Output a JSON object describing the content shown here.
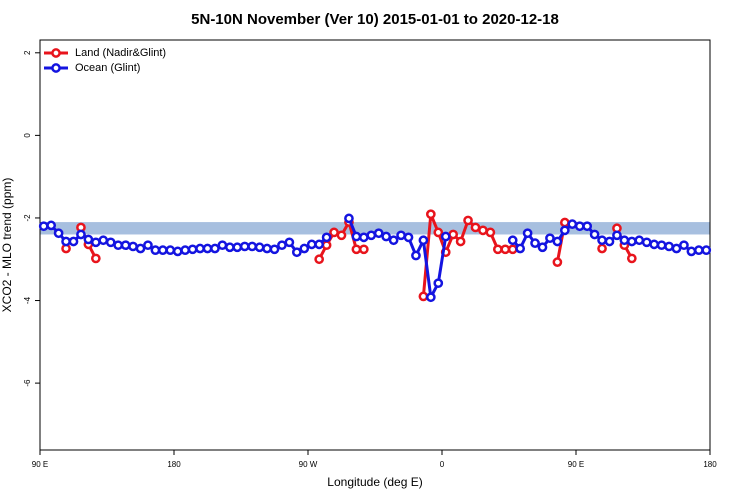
{
  "chart_data": {
    "type": "line",
    "title": "5N-10N November (Ver 10)   2015-01-01 to 2020-12-18",
    "xlabel": "Longitude (deg E)",
    "ylabel": "XCO2 - MLO trend (ppm)",
    "xlim": [
      90,
      540
    ],
    "ylim": [
      -7.62,
      2.31
    ],
    "xticks": [
      {
        "value": 90,
        "label": "90 E"
      },
      180,
      {
        "value": 270,
        "label": "90 W"
      },
      {
        "value": 360,
        "label": "0"
      },
      {
        "value": 450,
        "label": "90 E"
      },
      {
        "value": 540,
        "label": "180"
      }
    ],
    "yticks": [
      2,
      0,
      -2,
      -4,
      -6
    ],
    "band": [
      -2.4,
      -2.1
    ],
    "band_color": "#a7bfdf",
    "x": [
      92.5,
      97.5,
      102.5,
      107.5,
      112.5,
      117.5,
      122.5,
      127.5,
      132.5,
      137.5,
      142.5,
      147.5,
      152.5,
      157.5,
      162.5,
      167.5,
      172.5,
      177.5,
      182.5,
      187.5,
      192.5,
      197.5,
      202.5,
      207.5,
      212.5,
      217.5,
      222.5,
      227.5,
      232.5,
      237.5,
      242.5,
      247.5,
      252.5,
      257.5,
      262.5,
      267.5,
      272.5,
      277.5,
      282.5,
      287.5,
      292.5,
      297.5,
      302.5,
      307.5,
      312.5,
      317.5,
      322.5,
      327.5,
      332.5,
      337.5,
      342.5,
      347.5,
      352.5,
      357.5,
      362.5,
      367.5,
      372.5,
      377.5,
      382.5,
      387.5,
      392.5,
      397.5,
      402.5,
      407.5,
      412.5,
      417.5,
      422.5,
      427.5,
      432.5,
      437.5,
      442.5,
      447.5,
      452.5,
      457.5,
      462.5,
      467.5,
      472.5,
      477.5,
      482.5,
      487.5,
      492.5,
      497.5,
      502.5,
      507.5,
      512.5,
      517.5,
      522.5,
      527.5,
      532.5,
      537.5
    ],
    "series": [
      {
        "name": "Land (Nadir&Glint)",
        "color": "#e8141c",
        "values": [
          null,
          null,
          null,
          -2.74,
          null,
          -2.23,
          -2.64,
          -2.98,
          null,
          null,
          null,
          null,
          null,
          null,
          null,
          null,
          null,
          null,
          null,
          null,
          null,
          null,
          null,
          null,
          null,
          null,
          null,
          null,
          null,
          null,
          null,
          null,
          null,
          null,
          null,
          null,
          null,
          -3.0,
          -2.66,
          -2.35,
          -2.42,
          -2.1,
          -2.76,
          -2.76,
          null,
          null,
          null,
          null,
          null,
          null,
          null,
          -3.9,
          -1.91,
          -2.35,
          -2.83,
          -2.4,
          -2.57,
          -2.06,
          -2.23,
          -2.3,
          -2.35,
          -2.76,
          -2.76,
          -2.76,
          null,
          null,
          null,
          null,
          null,
          -3.07,
          -2.11,
          null,
          null,
          null,
          null,
          -2.74,
          null,
          -2.25,
          -2.66,
          -2.98,
          null,
          null,
          null,
          null,
          null,
          null,
          null,
          null,
          null,
          null
        ]
      },
      {
        "name": "Ocean (Glint)",
        "color": "#1414e0",
        "values": [
          -2.2,
          -2.18,
          -2.37,
          -2.57,
          -2.57,
          -2.4,
          -2.52,
          -2.59,
          -2.54,
          -2.59,
          -2.66,
          -2.66,
          -2.69,
          -2.74,
          -2.66,
          -2.78,
          -2.78,
          -2.78,
          -2.81,
          -2.78,
          -2.76,
          -2.74,
          -2.74,
          -2.74,
          -2.66,
          -2.71,
          -2.71,
          -2.69,
          -2.69,
          -2.71,
          -2.74,
          -2.76,
          -2.66,
          -2.59,
          -2.83,
          -2.74,
          -2.64,
          -2.64,
          -2.47,
          null,
          null,
          -2.01,
          -2.45,
          -2.47,
          -2.42,
          -2.37,
          -2.45,
          -2.54,
          -2.42,
          -2.47,
          -2.91,
          -2.54,
          -3.92,
          -3.58,
          -2.45,
          null,
          null,
          null,
          null,
          null,
          null,
          null,
          null,
          -2.54,
          -2.74,
          -2.37,
          -2.61,
          -2.71,
          -2.49,
          -2.57,
          -2.3,
          -2.15,
          -2.2,
          -2.2,
          -2.4,
          -2.54,
          -2.57,
          -2.42,
          -2.54,
          -2.57,
          -2.54,
          -2.59,
          -2.64,
          -2.66,
          -2.69,
          -2.74,
          -2.66,
          -2.81,
          -2.78,
          -2.78
        ]
      }
    ]
  }
}
